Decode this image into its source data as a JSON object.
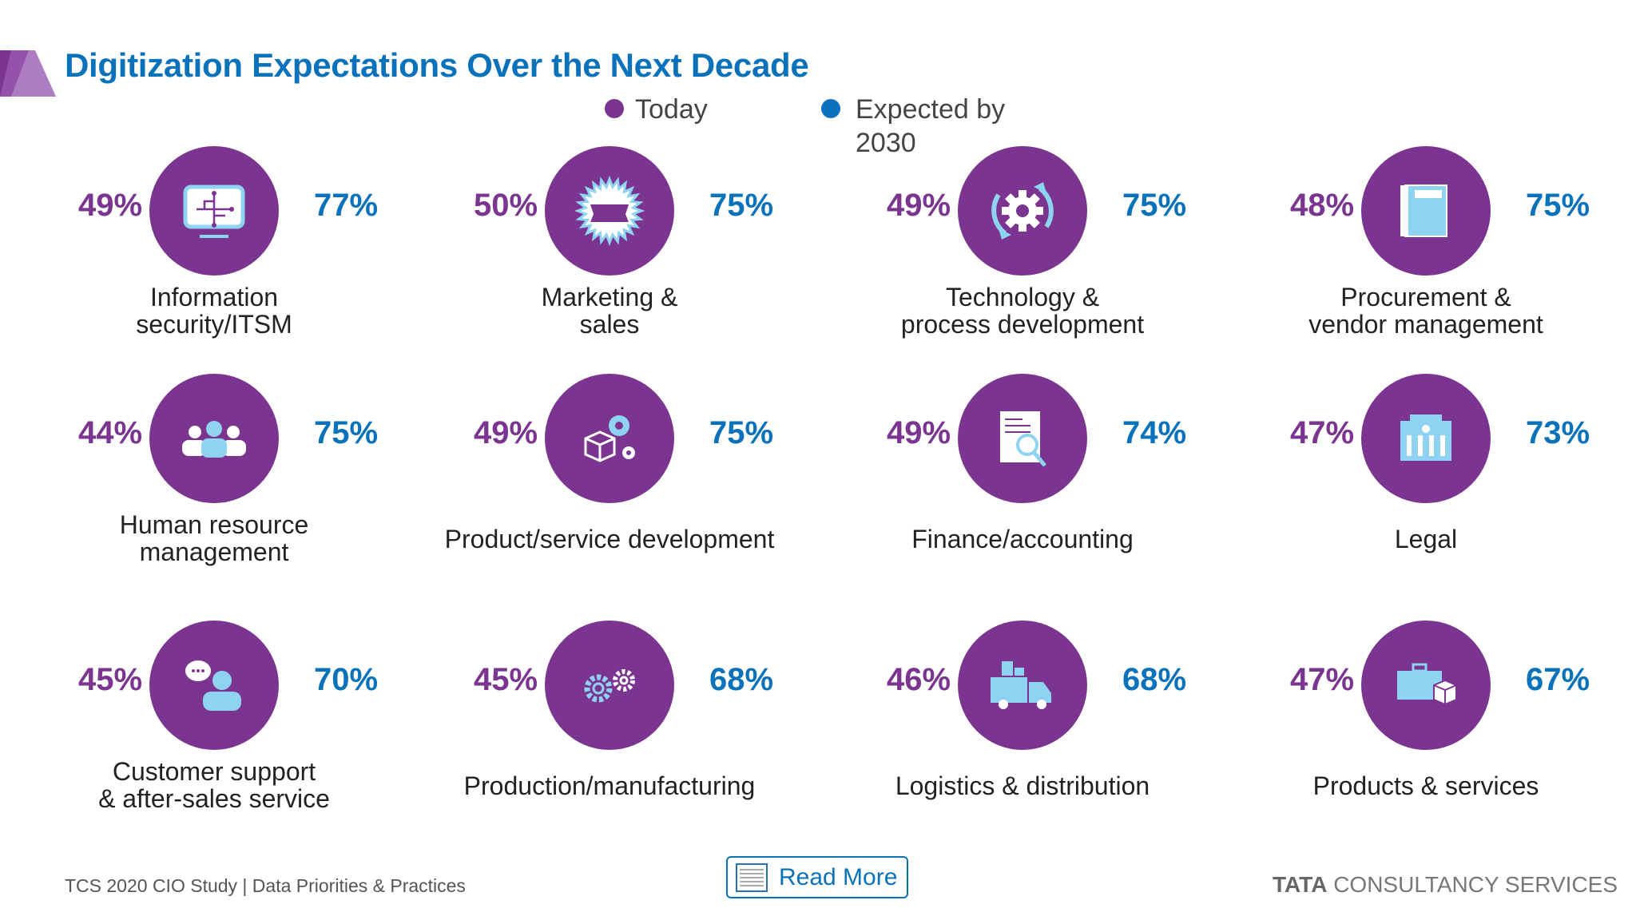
{
  "title": "Digitization Expectations Over the Next Decade",
  "legend": {
    "today": "Today",
    "expected_line1": "Expected by",
    "expected_line2": "2030"
  },
  "colors": {
    "today": "#7b3590",
    "expected": "#0a72bb",
    "icon": "#8fd3f2"
  },
  "functions": [
    {
      "label1": "Information",
      "label2": "security/ITSM",
      "today": "49%",
      "expected": "77%",
      "icon": "monitor-circuit-icon"
    },
    {
      "label1": "Marketing &",
      "label2": "sales",
      "today": "50%",
      "expected": "75%",
      "icon": "badge-banner-icon"
    },
    {
      "label1": "Technology &",
      "label2": "process development",
      "today": "49%",
      "expected": "75%",
      "icon": "gear-cycle-icon"
    },
    {
      "label1": "Procurement &",
      "label2": "vendor management",
      "today": "48%",
      "expected": "75%",
      "icon": "binder-icon"
    },
    {
      "label1": "Human resource",
      "label2": "management",
      "today": "44%",
      "expected": "75%",
      "icon": "people-icon"
    },
    {
      "label1": "Product/service development",
      "label2": "",
      "today": "49%",
      "expected": "75%",
      "icon": "box-gears-icon"
    },
    {
      "label1": "Finance/accounting",
      "label2": "",
      "today": "49%",
      "expected": "74%",
      "icon": "document-search-icon"
    },
    {
      "label1": "Legal",
      "label2": "",
      "today": "47%",
      "expected": "73%",
      "icon": "courthouse-icon"
    },
    {
      "label1": "Customer support",
      "label2": "& after-sales service",
      "today": "45%",
      "expected": "70%",
      "icon": "chat-person-icon"
    },
    {
      "label1": "Production/manufacturing",
      "label2": "",
      "today": "45%",
      "expected": "68%",
      "icon": "gears-icon"
    },
    {
      "label1": "Logistics & distribution",
      "label2": "",
      "today": "46%",
      "expected": "68%",
      "icon": "truck-icon"
    },
    {
      "label1": "Products & services",
      "label2": "",
      "today": "47%",
      "expected": "67%",
      "icon": "briefcase-box-icon"
    }
  ],
  "footer": {
    "source": "TCS 2020 CIO Study | Data Priorities & Practices",
    "read_more": "Read More",
    "logo_bold": "TATA",
    "logo_rest": " CONSULTANCY SERVICES"
  }
}
